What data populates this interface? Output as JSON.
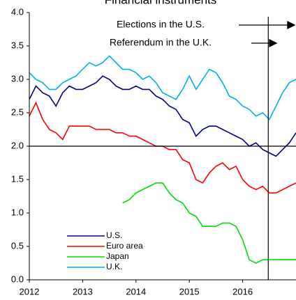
{
  "chart_data": {
    "type": "line",
    "title": "Financial instruments",
    "x": [
      2012,
      2012.125,
      2012.25,
      2012.375,
      2012.5,
      2012.625,
      2012.75,
      2012.875,
      2013,
      2013.125,
      2013.25,
      2013.375,
      2013.5,
      2013.625,
      2013.75,
      2013.875,
      2014,
      2014.125,
      2014.25,
      2014.375,
      2014.5,
      2014.625,
      2014.75,
      2014.875,
      2015,
      2015.125,
      2015.25,
      2015.375,
      2015.5,
      2015.625,
      2015.75,
      2015.875,
      2016,
      2016.125,
      2016.25,
      2016.375,
      2016.5,
      2016.625,
      2016.75,
      2016.875,
      2017
    ],
    "series": [
      {
        "name": "U.S.",
        "color": "#00008b",
        "values": [
          2.7,
          2.9,
          2.8,
          2.75,
          2.6,
          2.8,
          2.9,
          2.85,
          2.85,
          2.9,
          2.95,
          3.05,
          3.0,
          2.9,
          2.85,
          2.85,
          2.9,
          2.85,
          2.85,
          2.75,
          2.7,
          2.6,
          2.55,
          2.4,
          2.35,
          2.15,
          2.25,
          2.3,
          2.3,
          2.25,
          2.2,
          2.15,
          2.1,
          2.0,
          2.05,
          1.95,
          1.9,
          1.85,
          1.95,
          2.05,
          2.2
        ]
      },
      {
        "name": "Euro area",
        "color": "#ff0000",
        "values": [
          2.45,
          2.65,
          2.4,
          2.25,
          2.2,
          2.1,
          2.3,
          2.3,
          2.3,
          2.3,
          2.25,
          2.25,
          2.25,
          2.2,
          2.2,
          2.15,
          2.15,
          2.1,
          2.05,
          2.0,
          2.0,
          1.95,
          1.95,
          1.8,
          1.75,
          1.5,
          1.45,
          1.6,
          1.7,
          1.75,
          1.65,
          1.7,
          1.5,
          1.4,
          1.35,
          1.4,
          1.3,
          1.3,
          1.35,
          1.4,
          1.45
        ]
      },
      {
        "name": "Japan",
        "color": "#00dd00",
        "values": [
          null,
          null,
          null,
          null,
          null,
          null,
          null,
          null,
          null,
          null,
          null,
          null,
          null,
          null,
          1.15,
          1.2,
          1.3,
          1.35,
          1.4,
          1.45,
          1.45,
          1.3,
          1.2,
          1.15,
          1.0,
          0.95,
          0.8,
          0.8,
          0.8,
          0.85,
          0.85,
          0.8,
          0.6,
          0.3,
          0.25,
          0.3,
          0.3,
          0.3,
          0.3,
          0.3,
          0.3
        ]
      },
      {
        "name": "U.K.",
        "color": "#00b0f0",
        "values": [
          3.1,
          3.0,
          2.95,
          2.85,
          2.85,
          2.95,
          3.0,
          3.05,
          3.15,
          3.25,
          3.2,
          3.25,
          3.35,
          3.25,
          3.15,
          3.15,
          3.1,
          3.0,
          3.05,
          2.95,
          2.8,
          2.75,
          2.7,
          2.85,
          3.05,
          2.85,
          3.0,
          3.15,
          3.1,
          2.95,
          2.75,
          2.7,
          2.6,
          2.55,
          2.45,
          2.5,
          2.4,
          2.6,
          2.8,
          2.95,
          3.0
        ]
      }
    ],
    "xlim": [
      2012,
      2017
    ],
    "xticks": [
      2012,
      2013,
      2014,
      2015,
      2016
    ],
    "ylim": [
      0,
      4
    ],
    "yticks": [
      {
        "value": 0,
        "label": "0.0"
      },
      0.5,
      {
        "value": 1,
        "label": "1.0"
      },
      1.5,
      {
        "value": 2,
        "label": "2.0"
      },
      2.5,
      {
        "value": 3,
        "label": "3.0"
      },
      3.5,
      {
        "value": 4,
        "label": "4.0"
      }
    ],
    "hline": 2.0,
    "vline": 2016.48,
    "annotations": [
      "Elections in the U.S.",
      "Referendum in the U.K."
    ],
    "legend": "lower left"
  }
}
